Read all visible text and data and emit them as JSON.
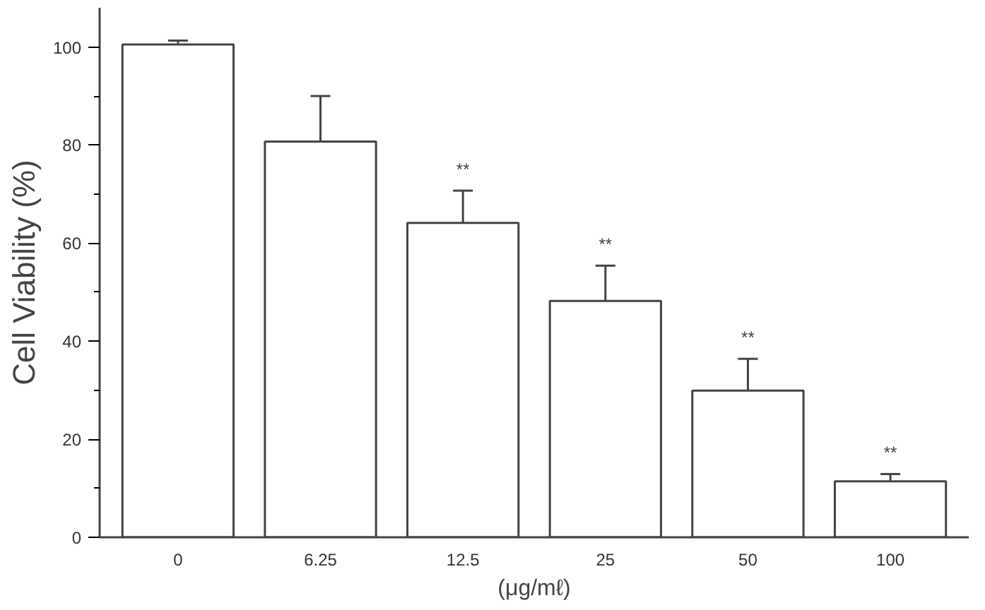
{
  "chart_data": {
    "type": "bar",
    "ylabel": "Cell Viability (%)",
    "xlabel": "(μg/mℓ)",
    "categories": [
      "0",
      "6.25",
      "12.5",
      "25",
      "50",
      "100"
    ],
    "values": [
      100.5,
      80.7,
      64.1,
      48.2,
      29.9,
      11.4
    ],
    "errors": [
      0.8,
      9.3,
      6.6,
      7.2,
      6.5,
      1.5
    ],
    "color": "#ffffff",
    "ylim": [
      0,
      108
    ],
    "yticks": [
      0,
      20,
      40,
      60,
      80,
      100
    ],
    "grid": false,
    "annotations": [
      {
        "text": "**",
        "x": "12.5",
        "y": 70.7
      },
      {
        "text": "**",
        "x": "25",
        "y": 55.4
      },
      {
        "text": "**",
        "x": "50",
        "y": 36.4
      },
      {
        "text": "**",
        "x": "100",
        "y": 12.9
      }
    ]
  }
}
